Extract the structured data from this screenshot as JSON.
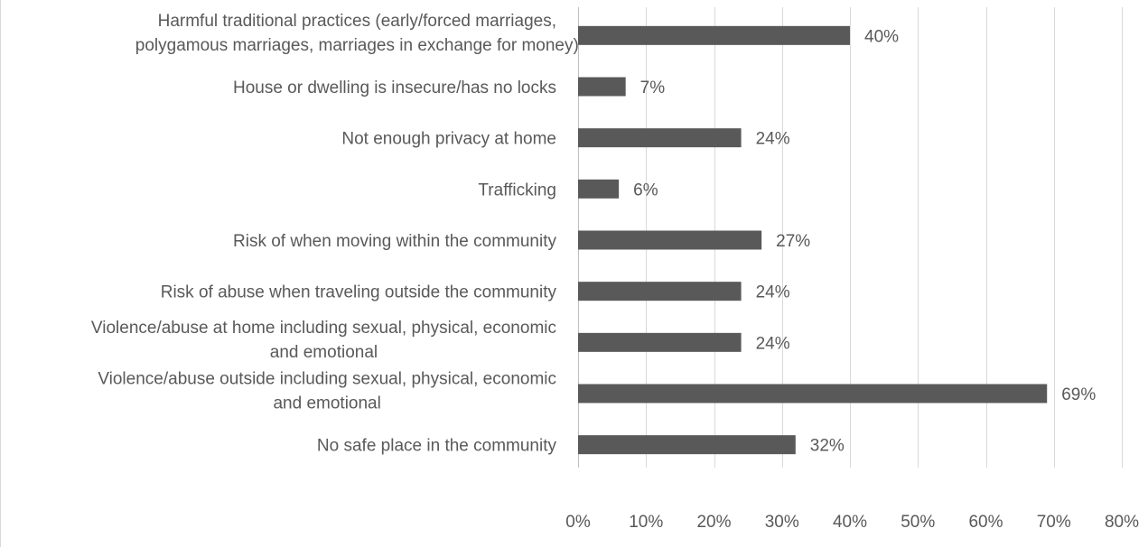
{
  "chart_data": {
    "type": "bar",
    "orientation": "horizontal",
    "categories": [
      "Harmful traditional practices (early/forced marriages, polygamous marriages, marriages in exchange for money)",
      "House or dwelling is insecure/has no locks",
      "Not enough privacy at home",
      "Trafficking",
      "Risk of when moving within the community",
      "Risk of abuse when traveling outside the community",
      "Violence/abuse at home including sexual, physical, economic and emotional",
      "Violence/abuse outside including sexual, physical, economic and emotional",
      "No safe place in the community"
    ],
    "category_lines": [
      [
        "Harmful traditional practices (early/forced marriages,",
        "polygamous marriages, marriages in exchange for money)"
      ],
      [
        "House or dwelling is insecure/has no locks"
      ],
      [
        "Not enough privacy at home"
      ],
      [
        "Trafficking"
      ],
      [
        "Risk of when moving within the community"
      ],
      [
        "Risk of abuse when traveling outside the community"
      ],
      [
        "Violence/abuse at home including sexual, physical, economic",
        "and emotional"
      ],
      [
        "Violence/abuse outside including sexual, physical, economic",
        "and emotional"
      ],
      [
        "No safe place in the community"
      ]
    ],
    "values": [
      40,
      7,
      24,
      6,
      27,
      24,
      24,
      69,
      32
    ],
    "data_labels": [
      "40%",
      "7%",
      "24%",
      "6%",
      "27%",
      "24%",
      "24%",
      "69%",
      "32%"
    ],
    "xlim": [
      0,
      80
    ],
    "x_ticks": [
      0,
      10,
      20,
      30,
      40,
      50,
      60,
      70,
      80
    ],
    "x_tick_labels": [
      "0%",
      "10%",
      "20%",
      "30%",
      "40%",
      "50%",
      "60%",
      "70%",
      "80%"
    ],
    "grid": "vertical",
    "bar_color": "#595959",
    "title": "",
    "xlabel": "",
    "ylabel": ""
  }
}
